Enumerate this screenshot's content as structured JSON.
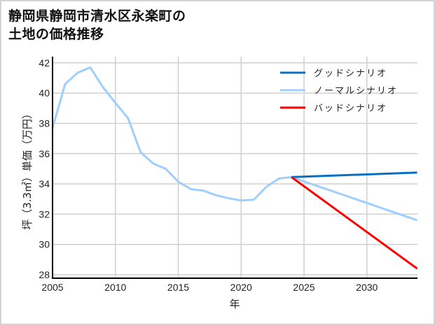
{
  "title": {
    "line1": "静岡県静岡市清水区永楽町の",
    "line2": "土地の価格推移"
  },
  "chart_data": {
    "type": "line",
    "title": "静岡県静岡市清水区永楽町の土地の価格推移",
    "xlabel": "年",
    "ylabel": "坪（3.3㎡）単価（万円）",
    "xlim": [
      2005,
      2034
    ],
    "ylim": [
      28,
      42.5
    ],
    "xticks": [
      2005,
      2010,
      2015,
      2020,
      2025,
      2030
    ],
    "yticks": [
      28,
      30,
      32,
      34,
      36,
      38,
      40,
      42
    ],
    "grid": true,
    "legend_position": "upper right",
    "series": [
      {
        "name": "グッドシナリオ",
        "color": "#0a6fc2",
        "x": [
          2024,
          2034
        ],
        "values": [
          34.45,
          34.75
        ]
      },
      {
        "name": "ノーマルシナリオ",
        "color": "#9fcfff",
        "x": [
          2005,
          2006,
          2007,
          2008,
          2009,
          2010,
          2011,
          2012,
          2013,
          2014,
          2015,
          2016,
          2017,
          2018,
          2019,
          2020,
          2021,
          2022,
          2023,
          2024,
          2034
        ],
        "values": [
          37.7,
          40.6,
          41.35,
          41.7,
          40.4,
          39.35,
          38.35,
          36.1,
          35.35,
          35.0,
          34.15,
          33.65,
          33.55,
          33.25,
          33.05,
          32.9,
          32.95,
          33.8,
          34.35,
          34.45,
          31.6
        ]
      },
      {
        "name": "バッドシナリオ",
        "color": "#ff0000",
        "x": [
          2024,
          2034
        ],
        "values": [
          34.45,
          28.4
        ]
      }
    ]
  }
}
